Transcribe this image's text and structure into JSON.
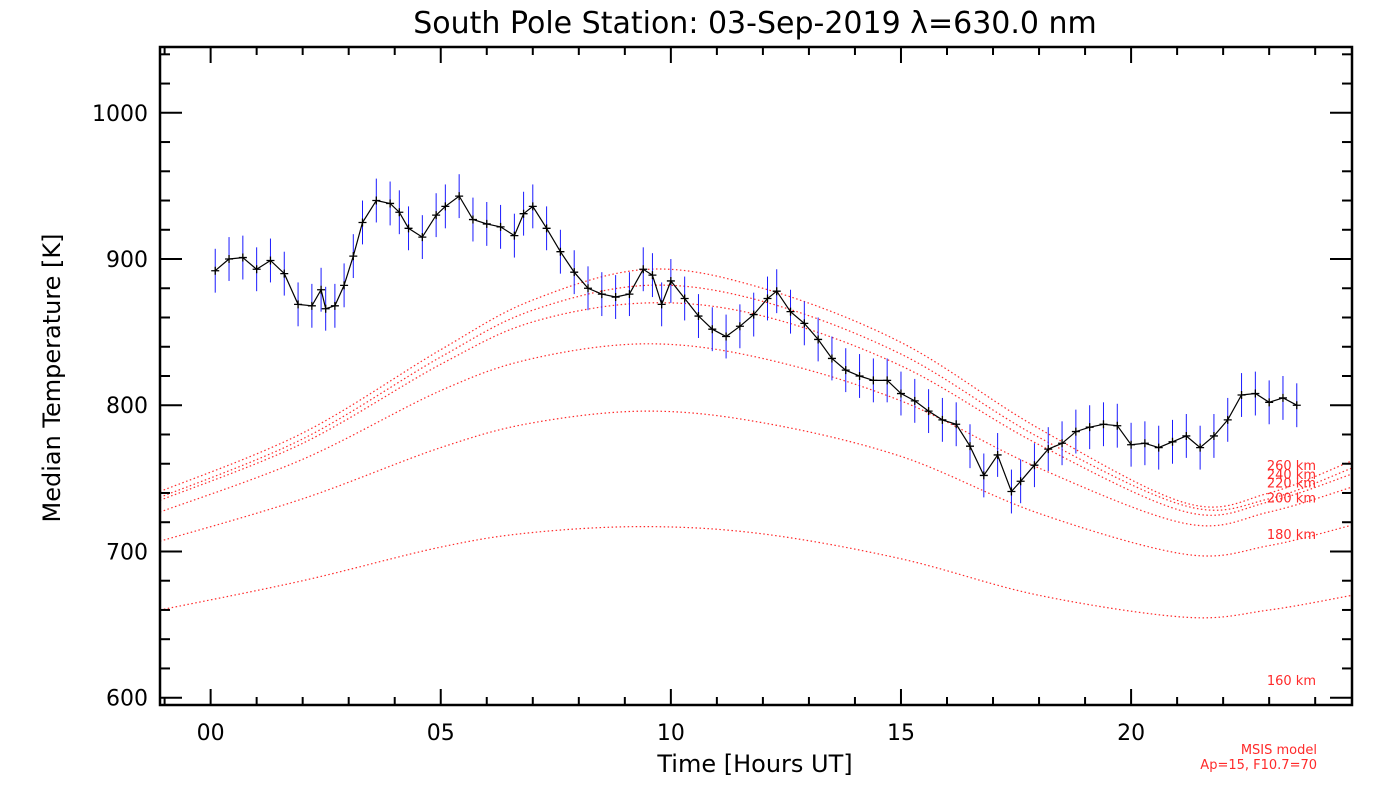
{
  "chart_data": {
    "type": "line",
    "title": "South Pole Station: 03-Sep-2019 λ=630.0 nm",
    "xlabel": "Time [Hours UT]",
    "ylabel": "Median Temperature [K]",
    "xlim": [
      -1.1,
      24.8
    ],
    "ylim": [
      595,
      1045
    ],
    "x_ticks": [
      0,
      5,
      10,
      15,
      20
    ],
    "x_tick_labels": [
      "00",
      "05",
      "10",
      "15",
      "20"
    ],
    "y_ticks": [
      600,
      700,
      800,
      900,
      1000
    ],
    "y_tick_labels": [
      "600",
      "700",
      "800",
      "900",
      "1000"
    ],
    "grid": false,
    "colors": {
      "measured": "#000000",
      "error_bars": "#1a1aff",
      "model": "#ff2a2a"
    },
    "series": [
      {
        "x": [
          0.1,
          0.4,
          0.7,
          1.0,
          1.3,
          1.6,
          1.9,
          2.2,
          2.4,
          2.5,
          2.7,
          2.9,
          3.1,
          3.3,
          3.6,
          3.9,
          4.1,
          4.3,
          4.6,
          4.9,
          5.1,
          5.4,
          5.7,
          6.0,
          6.3,
          6.6,
          6.8,
          7.0,
          7.3,
          7.6,
          7.9,
          8.2,
          8.5,
          8.8,
          9.1,
          9.4,
          9.6,
          9.8,
          10.0,
          10.3,
          10.6,
          10.9,
          11.2,
          11.5,
          11.8,
          12.1,
          12.3,
          12.6,
          12.9,
          13.2,
          13.5,
          13.8,
          14.1,
          14.4,
          14.7,
          15.0,
          15.3,
          15.6,
          15.9,
          16.2,
          16.5,
          16.8,
          17.1,
          17.4,
          17.6,
          17.9,
          18.2,
          18.5,
          18.8,
          19.1,
          19.4,
          19.7,
          20.0,
          20.3,
          20.6,
          20.9,
          21.2,
          21.5,
          21.8,
          22.1,
          22.4,
          22.7,
          23.0,
          23.3,
          23.6
        ],
        "values": [
          892,
          900,
          901,
          893,
          899,
          890,
          869,
          868,
          879,
          866,
          868,
          882,
          902,
          925,
          940,
          938,
          932,
          921,
          915,
          930,
          936,
          943,
          927,
          924,
          922,
          916,
          931,
          936,
          921,
          905,
          891,
          880,
          876,
          874,
          876,
          893,
          889,
          869,
          885,
          873,
          861,
          852,
          847,
          854,
          862,
          873,
          878,
          864,
          856,
          845,
          832,
          824,
          820,
          817,
          817,
          808,
          803,
          796,
          790,
          787,
          772,
          752,
          766,
          741,
          748,
          759,
          770,
          774,
          782,
          785,
          787,
          786,
          773,
          774,
          771,
          775,
          779,
          771,
          779,
          790,
          807,
          808,
          802,
          805,
          800
        ]
      }
    ],
    "model_curves": [
      {
        "name": "160 km",
        "x": [
          -1.1,
          2.0,
          5.0,
          7.0,
          9.5,
          12.0,
          15.0,
          18.0,
          21.2,
          23.0,
          24.8
        ],
        "values": [
          660,
          680,
          703,
          713,
          717,
          712,
          695,
          670,
          655,
          660,
          670
        ]
      },
      {
        "name": "180 km",
        "x": [
          -1.1,
          2.0,
          5.0,
          7.0,
          9.5,
          12.0,
          15.0,
          18.0,
          21.2,
          23.0,
          24.8
        ],
        "values": [
          707,
          736,
          771,
          788,
          796,
          788,
          765,
          726,
          698,
          704,
          718
        ]
      },
      {
        "name": "200 km",
        "x": [
          -1.1,
          2.0,
          5.0,
          7.0,
          9.5,
          12.0,
          15.0,
          18.0,
          21.2,
          23.0,
          24.8
        ],
        "values": [
          727,
          763,
          810,
          832,
          842,
          832,
          803,
          757,
          719,
          727,
          744
        ]
      },
      {
        "name": "220 km",
        "x": [
          -1.1,
          2.0,
          5.0,
          7.0,
          9.5,
          12.0,
          15.0,
          18.0,
          21.2,
          23.0,
          24.8
        ],
        "values": [
          735,
          774,
          828,
          857,
          870,
          861,
          827,
          773,
          727,
          734,
          753
        ]
      },
      {
        "name": "240 km",
        "x": [
          -1.1,
          2.0,
          5.0,
          7.0,
          9.5,
          12.0,
          15.0,
          18.0,
          21.2,
          23.0,
          24.8
        ],
        "values": [
          737,
          777,
          833,
          865,
          882,
          871,
          835,
          778,
          731,
          736,
          757
        ]
      },
      {
        "name": "260 km",
        "x": [
          -1.1,
          2.0,
          5.0,
          7.0,
          9.5,
          12.0,
          15.0,
          18.0,
          21.2,
          23.0,
          24.8
        ],
        "values": [
          741,
          781,
          838,
          872,
          893,
          880,
          843,
          784,
          733,
          740,
          762
        ]
      }
    ],
    "model_label_y": [
      612,
      712,
      737,
      747,
      753,
      759
    ],
    "annotations": [
      "MSIS model",
      "Ap=15, F10.7=70"
    ]
  }
}
